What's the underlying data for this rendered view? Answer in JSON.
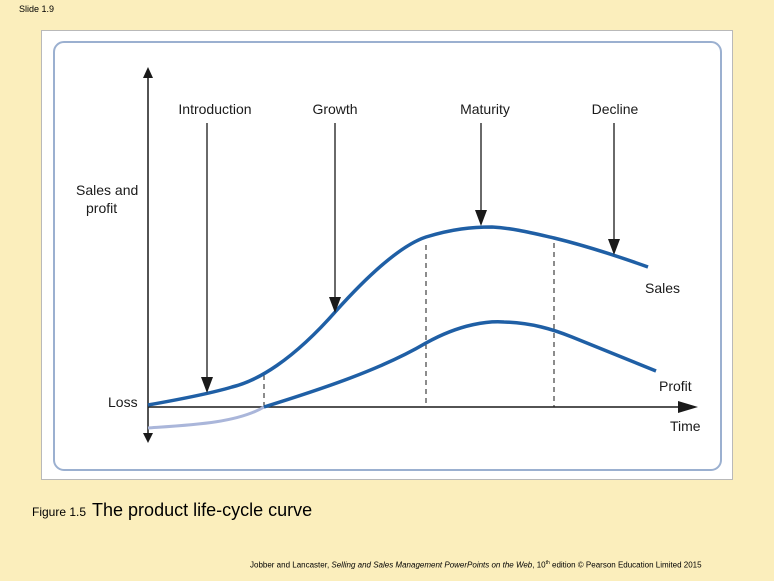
{
  "slide": {
    "label": "Slide 1.9"
  },
  "diagram": {
    "stages": [
      "Introduction",
      "Growth",
      "Maturity",
      "Decline"
    ],
    "y_axis": {
      "line1": "Sales and",
      "line2": "profit"
    },
    "baseline_label": "Loss",
    "x_axis_label": "Time",
    "curves": {
      "sales": "Sales",
      "profit": "Profit"
    },
    "colors": {
      "curve": "#1f5fa5",
      "loss_curve": "#aab6da",
      "frame_border": "#9bb0d0"
    }
  },
  "caption": {
    "number": "Figure 1.5",
    "title": "The product life-cycle curve"
  },
  "footer": {
    "authors": "Jobber and Lancaster, ",
    "book": "Selling and Sales Management PowerPoints on the Web",
    "edition_number": ", 10",
    "edition_suffix": "th",
    "rest": " edition © Pearson Education Limited 2015"
  }
}
